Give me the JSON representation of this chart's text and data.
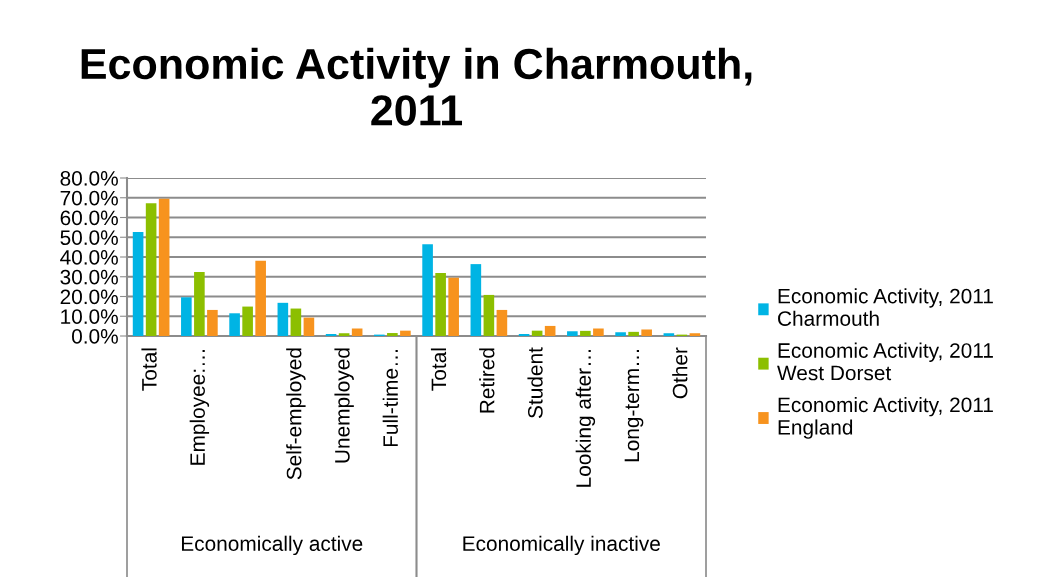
{
  "chart_data": {
    "type": "bar",
    "title": "Economic Activity in Charmouth,\n2011",
    "categories": [
      "Total",
      "Employee:…",
      null,
      "Self-employed",
      "Unemployed",
      "Full-time…",
      "Total",
      "Retired",
      "Student",
      "Looking after…",
      "Long-term…",
      "Other"
    ],
    "series": [
      {
        "name": "Economic Activity, 2011\nCharmouth",
        "color": "#00b4e4",
        "values": [
          52.7,
          19.6,
          11.5,
          16.8,
          1.0,
          0.7,
          46.5,
          36.4,
          1.0,
          2.4,
          1.9,
          1.4
        ]
      },
      {
        "name": "Economic Activity, 2011\nWest Dorset",
        "color": "#8cbf00",
        "values": [
          67.2,
          32.4,
          14.9,
          13.9,
          1.4,
          1.5,
          31.9,
          20.8,
          2.7,
          2.6,
          2.1,
          0.7
        ]
      },
      {
        "name": "Economic Activity, 2011\nEngland",
        "color": "#f7931e",
        "values": [
          69.5,
          13.2,
          38.1,
          9.3,
          3.8,
          2.7,
          29.5,
          13.2,
          5.1,
          3.8,
          3.3,
          1.4
        ]
      }
    ],
    "annotations": [
      "Economically active",
      "Economically inactive"
    ],
    "ylim": [
      0,
      80
    ],
    "yticks": [
      {
        "value": 0,
        "label": "0.0%"
      },
      {
        "value": 10,
        "label": "10.0%"
      },
      {
        "value": 20,
        "label": "20.0%"
      },
      {
        "value": 30,
        "label": "30.0%"
      },
      {
        "value": 40,
        "label": "40.0%"
      },
      {
        "value": 50,
        "label": "50.0%"
      },
      {
        "value": 60,
        "label": "60.0%"
      },
      {
        "value": 70,
        "label": "70.0%"
      },
      {
        "value": 80,
        "label": "80.0%"
      }
    ],
    "grid": "y",
    "legend": "right"
  }
}
